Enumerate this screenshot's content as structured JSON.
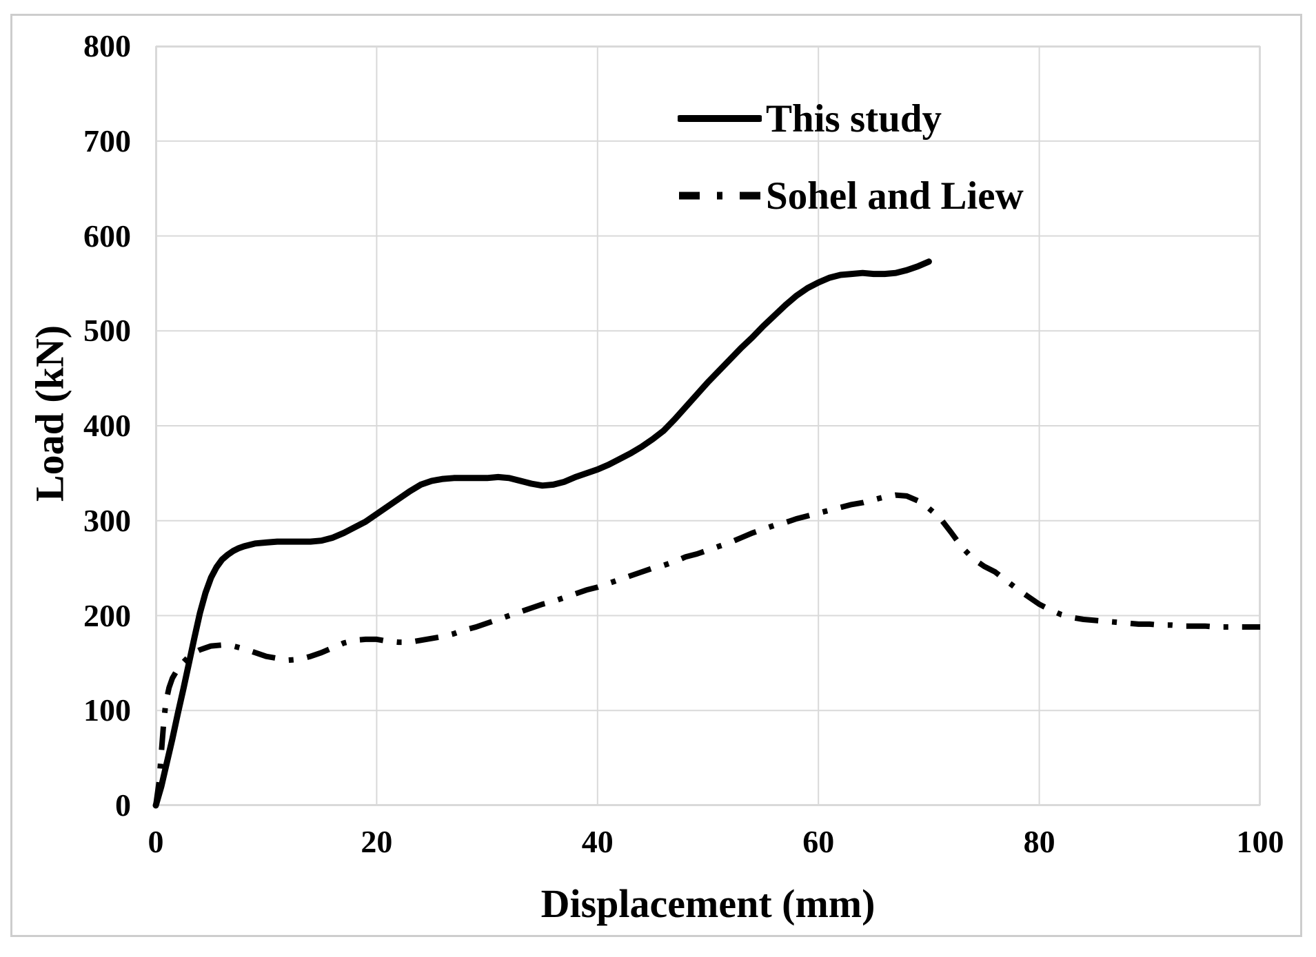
{
  "figure": {
    "background_color": "#ffffff",
    "border_color": "#cdcdcd",
    "text_color": "#000000"
  },
  "chart_data": {
    "type": "line",
    "title": "",
    "xlabel": "Displacement (mm)",
    "ylabel": "Load (kN)",
    "xlim": [
      0,
      100
    ],
    "ylim": [
      0,
      800
    ],
    "x_ticks": [
      0,
      20,
      40,
      60,
      80,
      100
    ],
    "y_ticks": [
      0,
      100,
      200,
      300,
      400,
      500,
      600,
      700,
      800
    ],
    "grid": true,
    "grid_color": "#d9d9d9",
    "legend_position": "top-right-inside",
    "series": [
      {
        "name": "This study",
        "line_style": "solid",
        "color": "#000000",
        "points": [
          [
            0,
            0
          ],
          [
            0.5,
            20
          ],
          [
            1,
            45
          ],
          [
            1.5,
            70
          ],
          [
            2,
            97
          ],
          [
            2.5,
            123
          ],
          [
            3,
            150
          ],
          [
            3.5,
            177
          ],
          [
            4,
            203
          ],
          [
            4.5,
            224
          ],
          [
            5,
            240
          ],
          [
            5.5,
            251
          ],
          [
            6,
            259
          ],
          [
            6.5,
            264
          ],
          [
            7,
            268
          ],
          [
            7.5,
            271
          ],
          [
            8,
            273
          ],
          [
            9,
            276
          ],
          [
            10,
            277
          ],
          [
            11,
            278
          ],
          [
            12,
            278
          ],
          [
            13,
            278
          ],
          [
            14,
            278
          ],
          [
            15,
            279
          ],
          [
            16,
            282
          ],
          [
            17,
            287
          ],
          [
            18,
            293
          ],
          [
            19,
            299
          ],
          [
            20,
            307
          ],
          [
            21,
            315
          ],
          [
            22,
            323
          ],
          [
            23,
            331
          ],
          [
            24,
            338
          ],
          [
            25,
            342
          ],
          [
            26,
            344
          ],
          [
            27,
            345
          ],
          [
            28,
            345
          ],
          [
            29,
            345
          ],
          [
            30,
            345
          ],
          [
            31,
            346
          ],
          [
            32,
            345
          ],
          [
            33,
            342
          ],
          [
            34,
            339
          ],
          [
            35,
            337
          ],
          [
            36,
            338
          ],
          [
            37,
            341
          ],
          [
            38,
            346
          ],
          [
            39,
            350
          ],
          [
            40,
            354
          ],
          [
            41,
            359
          ],
          [
            42,
            365
          ],
          [
            43,
            371
          ],
          [
            44,
            378
          ],
          [
            45,
            386
          ],
          [
            46,
            395
          ],
          [
            47,
            407
          ],
          [
            48,
            420
          ],
          [
            49,
            433
          ],
          [
            50,
            446
          ],
          [
            51,
            458
          ],
          [
            52,
            470
          ],
          [
            53,
            482
          ],
          [
            54,
            493
          ],
          [
            55,
            505
          ],
          [
            56,
            516
          ],
          [
            57,
            527
          ],
          [
            58,
            537
          ],
          [
            59,
            545
          ],
          [
            60,
            551
          ],
          [
            61,
            556
          ],
          [
            62,
            559
          ],
          [
            63,
            560
          ],
          [
            64,
            561
          ],
          [
            65,
            560
          ],
          [
            66,
            560
          ],
          [
            67,
            561
          ],
          [
            68,
            564
          ],
          [
            69,
            568
          ],
          [
            70,
            573
          ]
        ]
      },
      {
        "name": "Sohel and Liew",
        "line_style": "dash-dot",
        "color": "#000000",
        "points": [
          [
            0,
            0
          ],
          [
            0.3,
            25
          ],
          [
            0.5,
            55
          ],
          [
            0.7,
            85
          ],
          [
            0.9,
            108
          ],
          [
            1.2,
            124
          ],
          [
            1.5,
            134
          ],
          [
            2,
            144
          ],
          [
            2.5,
            151
          ],
          [
            3,
            157
          ],
          [
            3.5,
            161
          ],
          [
            4,
            164
          ],
          [
            4.5,
            166
          ],
          [
            5,
            168
          ],
          [
            6,
            169
          ],
          [
            7,
            168
          ],
          [
            8,
            165
          ],
          [
            9,
            161
          ],
          [
            10,
            157
          ],
          [
            11,
            155
          ],
          [
            12,
            153
          ],
          [
            13,
            154
          ],
          [
            14,
            157
          ],
          [
            15,
            161
          ],
          [
            16,
            166
          ],
          [
            17,
            171
          ],
          [
            18,
            174
          ],
          [
            19,
            175
          ],
          [
            20,
            175
          ],
          [
            21,
            173
          ],
          [
            22,
            172
          ],
          [
            23,
            172
          ],
          [
            24,
            174
          ],
          [
            25,
            176
          ],
          [
            26,
            178
          ],
          [
            27,
            181
          ],
          [
            28,
            185
          ],
          [
            29,
            188
          ],
          [
            30,
            192
          ],
          [
            31,
            196
          ],
          [
            32,
            200
          ],
          [
            33,
            204
          ],
          [
            34,
            208
          ],
          [
            35,
            212
          ],
          [
            36,
            215
          ],
          [
            37,
            219
          ],
          [
            38,
            223
          ],
          [
            39,
            227
          ],
          [
            40,
            230
          ],
          [
            41,
            234
          ],
          [
            42,
            238
          ],
          [
            43,
            242
          ],
          [
            44,
            246
          ],
          [
            45,
            250
          ],
          [
            46,
            253
          ],
          [
            47,
            257
          ],
          [
            48,
            262
          ],
          [
            49,
            265
          ],
          [
            50,
            269
          ],
          [
            51,
            273
          ],
          [
            52,
            277
          ],
          [
            53,
            282
          ],
          [
            54,
            287
          ],
          [
            55,
            291
          ],
          [
            56,
            295
          ],
          [
            57,
            298
          ],
          [
            58,
            302
          ],
          [
            59,
            305
          ],
          [
            60,
            308
          ],
          [
            61,
            311
          ],
          [
            62,
            314
          ],
          [
            63,
            317
          ],
          [
            64,
            319
          ],
          [
            65,
            322
          ],
          [
            66,
            325
          ],
          [
            67,
            327
          ],
          [
            68,
            326
          ],
          [
            69,
            321
          ],
          [
            70,
            313
          ],
          [
            71,
            303
          ],
          [
            72,
            288
          ],
          [
            73,
            272
          ],
          [
            74,
            260
          ],
          [
            75,
            252
          ],
          [
            76,
            246
          ],
          [
            77,
            237
          ],
          [
            78,
            228
          ],
          [
            79,
            220
          ],
          [
            80,
            212
          ],
          [
            81,
            206
          ],
          [
            82,
            201
          ],
          [
            83,
            198
          ],
          [
            84,
            196
          ],
          [
            85,
            195
          ],
          [
            86,
            194
          ],
          [
            87,
            193
          ],
          [
            88,
            192
          ],
          [
            89,
            191
          ],
          [
            90,
            191
          ],
          [
            91,
            190
          ],
          [
            92,
            190
          ],
          [
            93,
            189
          ],
          [
            94,
            189
          ],
          [
            95,
            189
          ],
          [
            96,
            188
          ],
          [
            97,
            188
          ],
          [
            98,
            188
          ],
          [
            99,
            188
          ],
          [
            100,
            188
          ]
        ]
      }
    ]
  }
}
